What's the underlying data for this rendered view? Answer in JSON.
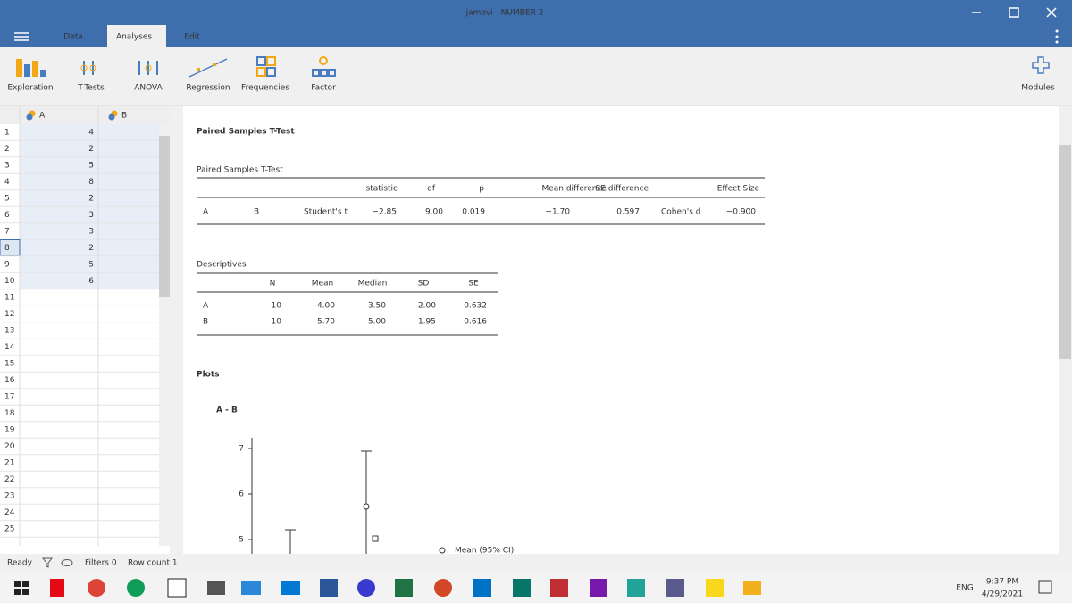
{
  "window": {
    "title": "jamovi - NUMBER 2"
  },
  "tabs": [
    "Data",
    "Analyses",
    "Edit"
  ],
  "toolbar": [
    "Exploration",
    "T-Tests",
    "ANOVA",
    "Regression",
    "Frequencies",
    "Factor"
  ],
  "modules": "Modules",
  "spreadsheet": {
    "columns": [
      "A",
      "B"
    ],
    "row_numbers": [
      1,
      2,
      3,
      4,
      5,
      6,
      7,
      8,
      9,
      10,
      11,
      12,
      13,
      14,
      15,
      16,
      17,
      18,
      19,
      20,
      21,
      22,
      23,
      24,
      25
    ],
    "A": [
      4,
      2,
      5,
      8,
      2,
      3,
      3,
      2,
      5,
      6
    ]
  },
  "status": {
    "ready": "Ready",
    "filters": "Filters 0",
    "row_count": "Row count 1"
  },
  "results": {
    "title": "Paired Samples T-Test",
    "ttest": {
      "caption": "Paired Samples T-Test",
      "headers": [
        "statistic",
        "df",
        "p",
        "Mean difference",
        "SE difference",
        "Effect Size"
      ],
      "row": [
        "A",
        "B",
        "Student's t",
        "−2.85",
        "9.00",
        "0.019",
        "−1.70",
        "0.597",
        "Cohen's d",
        "−0.900"
      ]
    },
    "descriptives": {
      "caption": "Descriptives",
      "headers": [
        "N",
        "Mean",
        "Median",
        "SD",
        "SE"
      ],
      "rows": [
        [
          "A",
          "10",
          "4.00",
          "3.50",
          "2.00",
          "0.632"
        ],
        [
          "B",
          "10",
          "5.70",
          "5.00",
          "1.95",
          "0.616"
        ]
      ]
    },
    "plots": {
      "title": "Plots",
      "subtitle": "A - B",
      "yticks": [
        7,
        6,
        5
      ],
      "legend": "Mean (95% CI)"
    }
  },
  "taskbar": {
    "language": "ENG",
    "time": "9:37 PM",
    "date": "4/29/2021"
  }
}
